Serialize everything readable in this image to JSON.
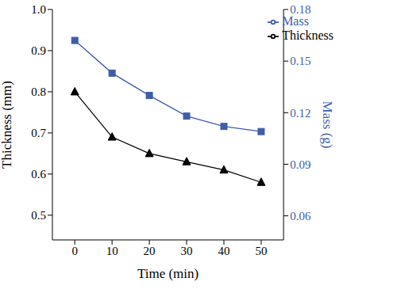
{
  "chart_data": {
    "type": "line",
    "x_label": "Time (min)",
    "y_label": "Thickness (mm)",
    "y2_label": "Mass (g)",
    "x": [
      0,
      10,
      20,
      30,
      40,
      50
    ],
    "series": [
      {
        "name": "Mass",
        "color": "#3f5ca8",
        "marker": "square",
        "axis": "y2",
        "values": [
          0.162,
          0.143,
          0.13,
          0.118,
          0.112,
          0.109
        ]
      },
      {
        "name": "Thickness",
        "color": "#000000",
        "marker": "triangle",
        "values": [
          0.8,
          0.69,
          0.65,
          0.63,
          0.61,
          0.58
        ]
      }
    ],
    "xlim": [
      -6,
      56
    ],
    "xticks": [
      0,
      10,
      20,
      30,
      40,
      50
    ],
    "ylim": [
      0.44,
      1
    ],
    "yticks": [
      0.5,
      0.6,
      0.7,
      0.8,
      0.9,
      {
        "value": 1,
        "label": "1.0"
      }
    ],
    "y2lim": [
      0.046,
      0.18
    ],
    "y2ticks": [
      0.06,
      0.09,
      0.12,
      0.15,
      0.18
    ],
    "legend": "upper right",
    "grid": false
  }
}
